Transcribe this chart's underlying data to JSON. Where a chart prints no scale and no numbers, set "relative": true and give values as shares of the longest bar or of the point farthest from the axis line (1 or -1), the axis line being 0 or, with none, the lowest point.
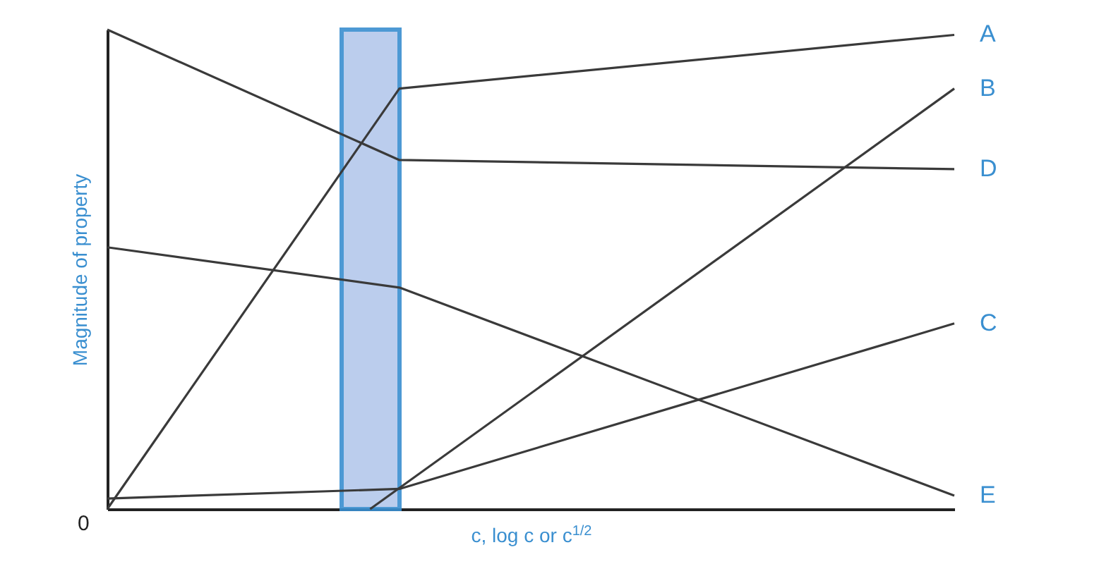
{
  "chart_data": {
    "type": "line",
    "relative": true,
    "xlabel": "c, log c or c$^{1/2}$",
    "ylabel": "Magnitude of property",
    "grid": false,
    "marker": "none",
    "annotations": [
      "0"
    ],
    "categories": [
      null,
      null,
      null,
      null,
      null,
      null,
      null,
      null,
      null,
      null,
      null,
      null,
      null,
      null,
      null,
      null,
      null,
      null,
      null,
      null,
      null,
      null,
      null,
      null,
      null,
      null,
      null,
      null,
      null,
      null
    ],
    "series": [
      {
        "name": "A",
        "color": "#3a3a3a",
        "values": [
          0,
          null,
          null,
          null,
          null,
          null,
          null,
          null,
          null,
          null,
          0.877,
          null,
          null,
          null,
          null,
          null,
          null,
          null,
          null,
          null,
          null,
          null,
          null,
          null,
          null,
          null,
          null,
          null,
          null,
          0.989
        ]
      },
      {
        "name": "B",
        "color": "#3a3a3a",
        "values": [
          null,
          null,
          null,
          null,
          null,
          null,
          null,
          null,
          null,
          0,
          null,
          null,
          null,
          null,
          null,
          null,
          null,
          null,
          null,
          null,
          null,
          null,
          null,
          null,
          null,
          null,
          null,
          null,
          null,
          0.877
        ]
      },
      {
        "name": "C",
        "color": "#3a3a3a",
        "values": [
          0.022,
          null,
          null,
          null,
          null,
          null,
          null,
          null,
          null,
          null,
          0.042,
          null,
          null,
          null,
          null,
          null,
          null,
          null,
          null,
          null,
          null,
          null,
          null,
          null,
          null,
          null,
          null,
          null,
          null,
          0.387
        ]
      },
      {
        "name": "D",
        "color": "#3a3a3a",
        "values": [
          1,
          null,
          null,
          null,
          null,
          null,
          null,
          null,
          null,
          null,
          0.728,
          null,
          null,
          null,
          null,
          null,
          null,
          null,
          null,
          null,
          null,
          null,
          null,
          null,
          null,
          null,
          null,
          null,
          null,
          0.709
        ]
      },
      {
        "name": "E",
        "color": "#3a3a3a",
        "values": [
          0.546,
          null,
          null,
          null,
          null,
          null,
          null,
          null,
          null,
          null,
          0.462,
          null,
          null,
          null,
          null,
          null,
          null,
          null,
          null,
          null,
          null,
          null,
          null,
          null,
          null,
          null,
          null,
          null,
          null,
          0.028
        ]
      }
    ]
  }
}
